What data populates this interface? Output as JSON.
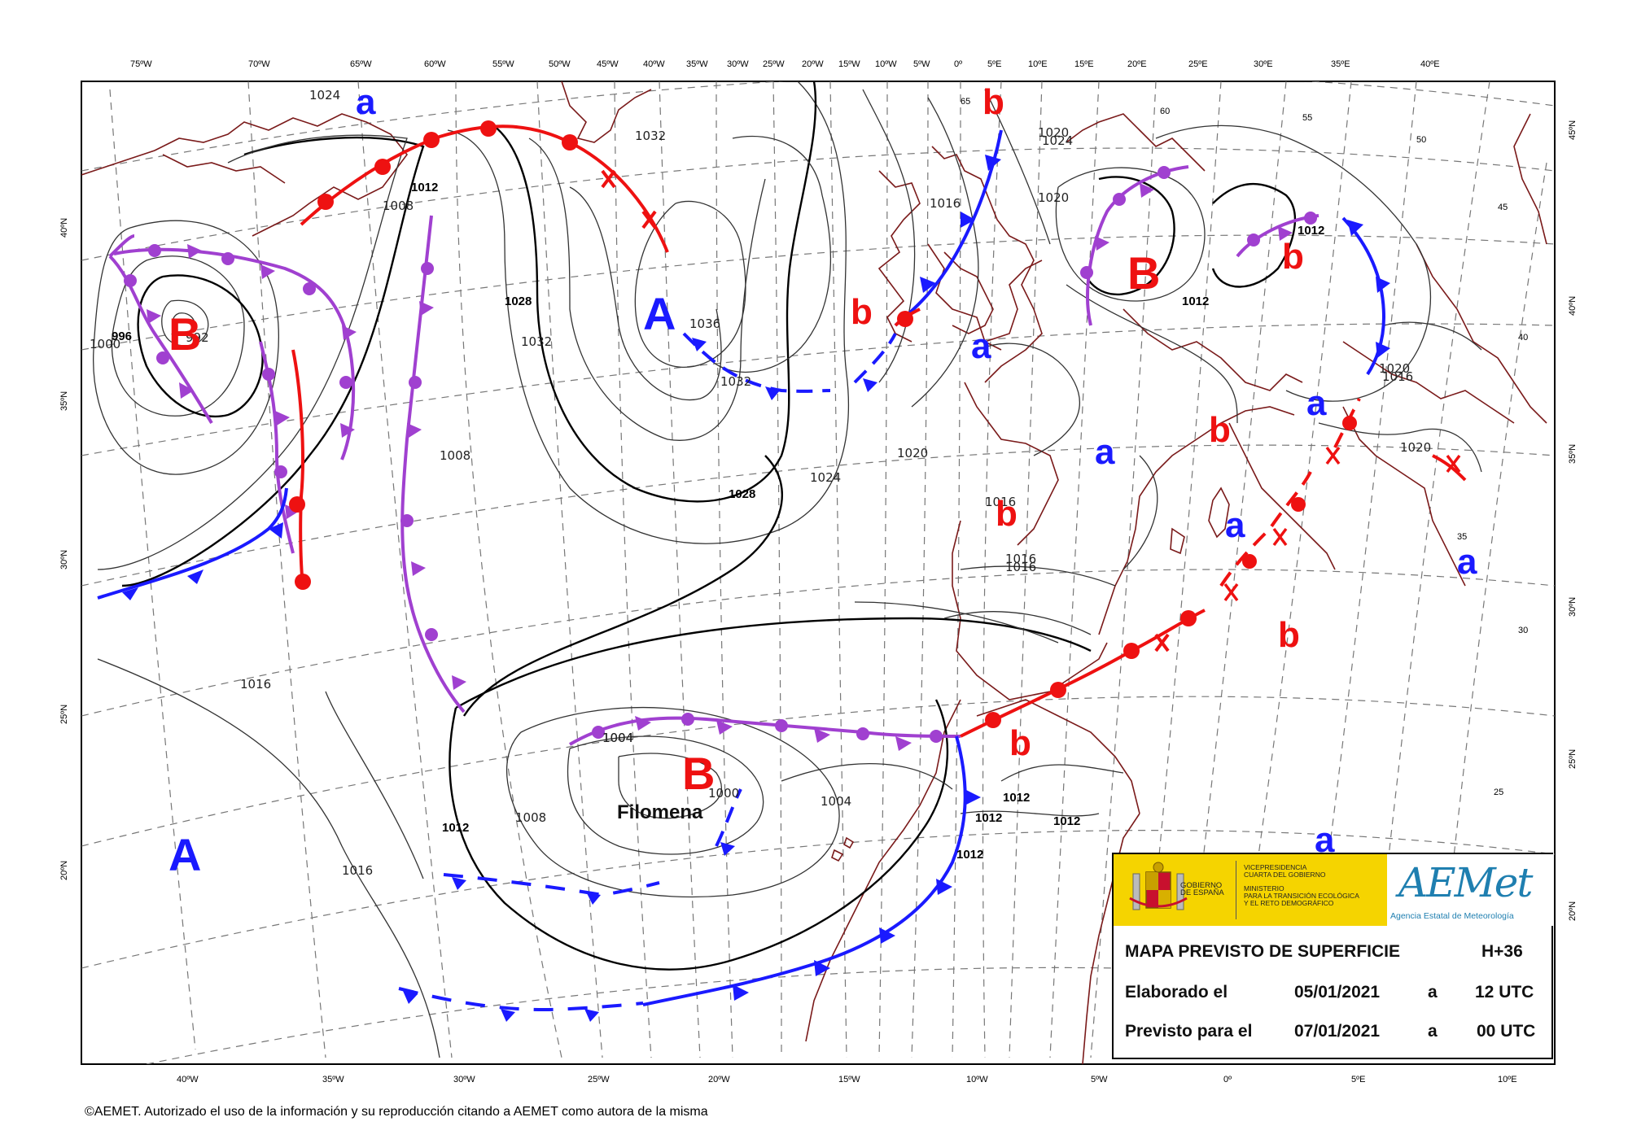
{
  "map": {
    "lon_labels_top": [
      "75ºW",
      "70ºW",
      "65ºW",
      "60ºW",
      "55ºW",
      "50ºW",
      "45ºW",
      "40ºW",
      "35ºW",
      "30ºW",
      "25ºW",
      "20ºW",
      "15ºW",
      "10ºW",
      "5ºW",
      "0º",
      "5ºE",
      "10ºE",
      "15ºE",
      "20ºE",
      "25ºE",
      "30ºE",
      "35ºE",
      "40ºE"
    ],
    "lon_labels_bottom": [
      "40ºW",
      "35ºW",
      "30ºW",
      "25ºW",
      "20ºW",
      "15ºW",
      "10ºW",
      "5ºW",
      "0º",
      "5ºE",
      "10ºE"
    ],
    "lat_labels_left": [
      "40ºN",
      "35ºN",
      "30ºN",
      "25ºN",
      "20ºN"
    ],
    "lat_labels_right": [
      "45ºN",
      "40ºN",
      "35ºN",
      "30ºN",
      "25ºN",
      "20ºN"
    ],
    "lat_labels_inner": [
      "65",
      "60",
      "55",
      "50",
      "45",
      "40",
      "35",
      "30",
      "25"
    ],
    "isobar_labels": [
      "1024",
      "1028",
      "1032",
      "1012",
      "1008",
      "996",
      "992",
      "1000",
      "1028",
      "1032",
      "1036",
      "1032",
      "1024",
      "1020",
      "1016",
      "1020",
      "1024",
      "1020",
      "1016",
      "1004",
      "1012",
      "1008",
      "1020",
      "1016",
      "1016",
      "1016",
      "1020",
      "1016",
      "1016",
      "1012",
      "1012",
      "1012",
      "1012",
      "1008",
      "1004",
      "1004",
      "1000",
      "1012",
      "1012"
    ],
    "pressure_centers": [
      {
        "letter": "a",
        "color": "#1a1aff"
      },
      {
        "letter": "b",
        "color": "#ee1111"
      },
      {
        "letter": "B",
        "color": "#ee1111"
      },
      {
        "letter": "A",
        "color": "#1a1aff"
      },
      {
        "letter": "b",
        "color": "#ee1111"
      },
      {
        "letter": "a",
        "color": "#1a1aff"
      },
      {
        "letter": "B",
        "color": "#ee1111"
      },
      {
        "letter": "b",
        "color": "#ee1111"
      },
      {
        "letter": "a",
        "color": "#1a1aff"
      },
      {
        "letter": "b",
        "color": "#ee1111"
      },
      {
        "letter": "a",
        "color": "#1a1aff"
      },
      {
        "letter": "b",
        "color": "#ee1111"
      },
      {
        "letter": "a",
        "color": "#1a1aff"
      },
      {
        "letter": "a",
        "color": "#1a1aff"
      },
      {
        "letter": "b",
        "color": "#ee1111"
      },
      {
        "letter": "b",
        "color": "#ee1111"
      },
      {
        "letter": "B",
        "color": "#ee1111"
      },
      {
        "letter": "A",
        "color": "#1a1aff"
      },
      {
        "letter": "a",
        "color": "#1a1aff"
      }
    ],
    "storm_name": "Filomena",
    "colors": {
      "cold_front": "#1a1aff",
      "warm_front": "#ee1111",
      "occluded_front": "#a040d0",
      "coastline": "#7a1a1a"
    }
  },
  "info_box": {
    "government": {
      "line1": "GOBIERNO",
      "line2": "DE ESPAÑA"
    },
    "ministry": {
      "line1": "VICEPRESIDENCIA",
      "line2": "CUARTA DEL GOBIERNO",
      "line3": "MINISTERIO",
      "line4": "PARA LA TRANSICIÓN ECOLÓGICA",
      "line5": "Y EL RETO DEMOGRÁFICO"
    },
    "agency_logo": "AEMet",
    "agency_name": "Agencia Estatal de Meteorología",
    "title": "MAPA PREVISTO DE SUPERFICIE",
    "horizon": "H+36",
    "made_label": "Elaborado el",
    "made_date": "05/01/2021",
    "made_at": "a",
    "made_time": "12 UTC",
    "valid_label": "Previsto para el",
    "valid_date": "07/01/2021",
    "valid_at": "a",
    "valid_time": "00 UTC"
  },
  "footer": {
    "credit": "©AEMET. Autorizado el uso de la información y su reproducción citando a AEMET como autora de la misma"
  }
}
